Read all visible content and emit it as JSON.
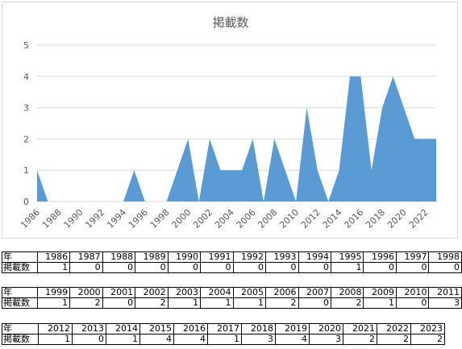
{
  "chart_data": {
    "type": "area",
    "title": "掲載数",
    "x": [
      "1986",
      "1987",
      "1988",
      "1989",
      "1990",
      "1991",
      "1992",
      "1993",
      "1994",
      "1995",
      "1996",
      "1997",
      "1998",
      "1999",
      "2000",
      "2001",
      "2002",
      "2003",
      "2004",
      "2005",
      "2006",
      "2007",
      "2008",
      "2009",
      "2010",
      "2011",
      "2012",
      "2013",
      "2014",
      "2015",
      "2016",
      "2017",
      "2018",
      "2019",
      "2020",
      "2021",
      "2022",
      "2023"
    ],
    "values": [
      1,
      0,
      0,
      0,
      0,
      0,
      0,
      0,
      0,
      1,
      0,
      0,
      0,
      1,
      2,
      0,
      2,
      1,
      1,
      1,
      2,
      0,
      2,
      1,
      0,
      3,
      1,
      0,
      1,
      4,
      4,
      1,
      3,
      4,
      3,
      2,
      2,
      2
    ],
    "x_tick_labels": [
      "1986",
      "1988",
      "1990",
      "1992",
      "1994",
      "1996",
      "1998",
      "2000",
      "2002",
      "2004",
      "2006",
      "2008",
      "2010",
      "2012",
      "2014",
      "2016",
      "2018",
      "2020",
      "2022"
    ],
    "y_ticks": [
      "0",
      "1",
      "2",
      "3",
      "4",
      "5"
    ],
    "ylim": [
      0,
      5
    ],
    "grid": true,
    "color": "#5b9bd5"
  },
  "table": {
    "year_header": "年",
    "count_header": "掲載数",
    "rows": [
      {
        "years": [
          "1986",
          "1987",
          "1988",
          "1989",
          "1990",
          "1991",
          "1992",
          "1993",
          "1994",
          "1995",
          "1996",
          "1997",
          "1998"
        ],
        "counts": [
          "1",
          "0",
          "0",
          "0",
          "0",
          "0",
          "0",
          "0",
          "0",
          "1",
          "0",
          "0",
          "0"
        ]
      },
      {
        "years": [
          "1999",
          "2000",
          "2001",
          "2002",
          "2003",
          "2004",
          "2005",
          "2006",
          "2007",
          "2008",
          "2009",
          "2010",
          "2011"
        ],
        "counts": [
          "1",
          "2",
          "0",
          "2",
          "1",
          "1",
          "1",
          "2",
          "0",
          "2",
          "1",
          "0",
          "3"
        ]
      },
      {
        "years": [
          "2012",
          "2013",
          "2014",
          "2015",
          "2016",
          "2017",
          "2018",
          "2019",
          "2020",
          "2021",
          "2022",
          "2023"
        ],
        "counts": [
          "1",
          "0",
          "1",
          "4",
          "4",
          "1",
          "3",
          "4",
          "3",
          "2",
          "2",
          "2"
        ]
      }
    ]
  }
}
